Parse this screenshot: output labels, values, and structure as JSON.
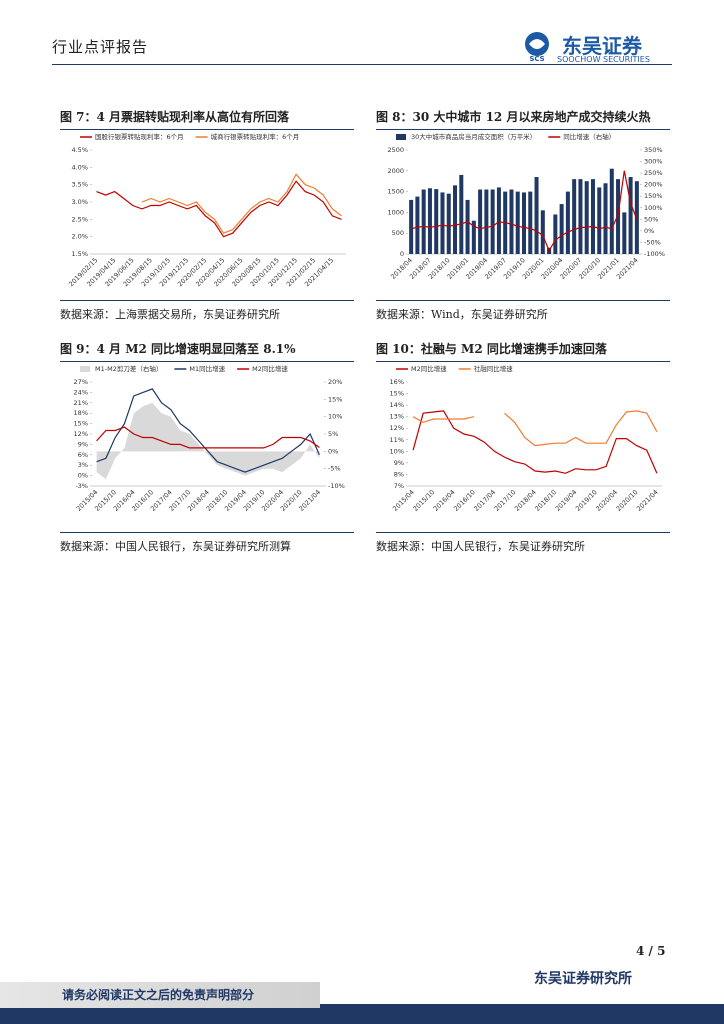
{
  "header": {
    "title": "行业点评报告",
    "logo_cn": "东吴证券",
    "logo_mark": "SCS",
    "logo_en": "SOOCHOW SECURITIES"
  },
  "figures": [
    {
      "title": "图 7：4 月票据转贴现利率从高位有所回落",
      "source": "数据来源：上海票据交易所，东吴证券研究所"
    },
    {
      "title": "图 8：30 大中城市 12 月以来房地产成交持续火热",
      "source": "数据来源：Wind，东吴证券研究所"
    },
    {
      "title": "图 9：4 月 M2 同比增速明显回落至 8.1%",
      "source": "数据来源：中国人民银行，东吴证券研究所测算"
    },
    {
      "title": "图 10：社融与 M2 同比增速携手加速回落",
      "source": "数据来源：中国人民银行，东吴证券研究所"
    }
  ],
  "chart_data": [
    {
      "type": "line",
      "categories": [
        "2019/02/15",
        null,
        "2019/04/15",
        null,
        "2019/06/15",
        null,
        "2019/08/15",
        null,
        "2019/10/15",
        null,
        "2019/12/15",
        null,
        "2020/02/15",
        null,
        "2020/04/15",
        null,
        "2020/06/15",
        null,
        "2020/08/15",
        null,
        "2020/10/15",
        null,
        "2020/12/15",
        null,
        "2021/02/15",
        null,
        "2021/04/15",
        null
      ],
      "ylim": [
        1.5,
        4.5
      ],
      "yticks": [
        {
          "value": 1.5,
          "label": "1.5%"
        },
        {
          "value": 2.0,
          "label": "2.0%"
        },
        {
          "value": 2.5,
          "label": "2.5%"
        },
        {
          "value": 3.0,
          "label": "3.0%"
        },
        {
          "value": 3.5,
          "label": "3.5%"
        },
        {
          "value": 4.0,
          "label": "4.0%"
        },
        {
          "value": 4.5,
          "label": "4.5%"
        }
      ],
      "series": [
        {
          "name": "国股行银票转贴现利率：6个月",
          "type": "line",
          "color": "#c00000",
          "values": [
            3.3,
            3.2,
            3.3,
            3.1,
            2.9,
            2.8,
            2.9,
            2.9,
            3.0,
            2.9,
            2.8,
            2.9,
            2.6,
            2.4,
            2.0,
            2.1,
            2.4,
            2.7,
            2.9,
            3.0,
            2.9,
            3.2,
            3.6,
            3.3,
            3.2,
            3.0,
            2.6,
            2.5
          ]
        },
        {
          "name": "城商行银票转贴现利率：6个月",
          "type": "line",
          "color": "#ed7d31",
          "values": [
            null,
            null,
            null,
            null,
            null,
            3.0,
            3.1,
            3.0,
            3.1,
            3.0,
            2.9,
            3.0,
            2.7,
            2.5,
            2.1,
            2.2,
            2.5,
            2.8,
            3.0,
            3.1,
            3.0,
            3.3,
            3.8,
            3.5,
            3.4,
            3.2,
            2.8,
            2.6
          ]
        }
      ]
    },
    {
      "type": "bar",
      "categories": [
        "2018/04",
        null,
        null,
        "2018/07",
        null,
        null,
        "2018/10",
        null,
        null,
        "2019/01",
        null,
        null,
        "2019/04",
        null,
        null,
        "2019/07",
        null,
        null,
        "2019/10",
        null,
        null,
        "2020/01",
        null,
        null,
        "2020/04",
        null,
        null,
        "2020/07",
        null,
        null,
        "2020/10",
        null,
        null,
        "2021/01",
        null,
        null,
        "2021/04"
      ],
      "ylim": [
        0,
        2500
      ],
      "yticks": [
        0,
        500,
        1000,
        1500,
        2000,
        2500
      ],
      "y2lim": [
        -100,
        350
      ],
      "y2ticks": [
        {
          "value": -100,
          "label": "-100%"
        },
        {
          "value": -50,
          "label": "-50%"
        },
        {
          "value": 0,
          "label": "0%"
        },
        {
          "value": 50,
          "label": "50%"
        },
        {
          "value": 100,
          "label": "100%"
        },
        {
          "value": 150,
          "label": "150%"
        },
        {
          "value": 200,
          "label": "200%"
        },
        {
          "value": 250,
          "label": "250%"
        },
        {
          "value": 300,
          "label": "300%"
        },
        {
          "value": 350,
          "label": "350%"
        }
      ],
      "series": [
        {
          "name": "30大中城市商品房当月成交面积（万平米）",
          "type": "bar",
          "color": "#1f3864",
          "values": [
            1300,
            1380,
            1550,
            1580,
            1560,
            1480,
            1450,
            1650,
            1900,
            1300,
            800,
            1550,
            1550,
            1550,
            1600,
            1500,
            1550,
            1500,
            1480,
            1500,
            1850,
            1050,
            150,
            950,
            1200,
            1500,
            1800,
            1800,
            1750,
            1800,
            1600,
            1700,
            2050,
            1800,
            1000,
            1850,
            1750
          ]
        },
        {
          "name": "同比增速（右轴）",
          "type": "line",
          "axis": "y2",
          "color": "#c00000",
          "values": [
            10,
            15,
            20,
            15,
            20,
            25,
            20,
            25,
            30,
            40,
            20,
            10,
            15,
            20,
            40,
            35,
            30,
            20,
            15,
            10,
            0,
            -20,
            -85,
            -40,
            -20,
            -5,
            5,
            15,
            15,
            20,
            10,
            15,
            10,
            70,
            260,
            120,
            50
          ]
        }
      ]
    },
    {
      "type": "line",
      "categories": [
        "2015/04",
        null,
        "2015/10",
        null,
        "2016/04",
        null,
        "2016/10",
        null,
        "2017/04",
        null,
        "2017/10",
        null,
        "2018/04",
        null,
        "2018/10",
        null,
        "2019/04",
        null,
        "2019/10",
        null,
        "2020/04",
        null,
        "2020/10",
        null,
        "2021/04"
      ],
      "ylim": [
        -3,
        27
      ],
      "yticks": [
        {
          "value": -3,
          "label": "-3%"
        },
        {
          "value": 0,
          "label": "0%"
        },
        {
          "value": 3,
          "label": "3%"
        },
        {
          "value": 6,
          "label": "6%"
        },
        {
          "value": 9,
          "label": "9%"
        },
        {
          "value": 12,
          "label": "12%"
        },
        {
          "value": 15,
          "label": "15%"
        },
        {
          "value": 18,
          "label": "18%"
        },
        {
          "value": 21,
          "label": "21%"
        },
        {
          "value": 24,
          "label": "24%"
        },
        {
          "value": 27,
          "label": "27%"
        }
      ],
      "y2lim": [
        -10,
        20
      ],
      "y2ticks": [
        {
          "value": -10,
          "label": "-10%"
        },
        {
          "value": -5,
          "label": "-5%"
        },
        {
          "value": 0,
          "label": "0%"
        },
        {
          "value": 5,
          "label": "5%"
        },
        {
          "value": 10,
          "label": "10%"
        },
        {
          "value": 15,
          "label": "15%"
        },
        {
          "value": 20,
          "label": "20%"
        }
      ],
      "series": [
        {
          "name": "M1-M2剪刀差（右轴）",
          "type": "area",
          "axis": "y2",
          "color": "#d9d9d9",
          "values": [
            -6,
            -8,
            -2,
            1,
            11,
            13,
            14,
            11,
            10,
            6,
            5,
            2,
            -1,
            -4,
            -5,
            -6,
            -7,
            -6,
            -5,
            -5,
            -6,
            -4,
            -2,
            2,
            -2
          ]
        },
        {
          "name": "M1同比增速",
          "type": "line",
          "color": "#1f3864",
          "values": [
            4,
            5,
            11,
            15,
            23,
            24,
            25,
            21,
            19,
            15,
            13,
            10,
            7,
            4,
            3,
            2,
            1,
            2,
            3,
            4,
            5,
            7,
            9,
            12,
            6
          ]
        },
        {
          "name": "M2同比增速",
          "type": "line",
          "color": "#c00000",
          "values": [
            10,
            13,
            13,
            14,
            12,
            11,
            11,
            10,
            9,
            9,
            8,
            8,
            8,
            8,
            8,
            8,
            8,
            8,
            8,
            9,
            11,
            11,
            11,
            10,
            8.1
          ]
        }
      ]
    },
    {
      "type": "line",
      "categories": [
        "2015/04",
        null,
        "2015/10",
        null,
        "2016/04",
        null,
        "2016/10",
        null,
        "2017/04",
        null,
        "2017/10",
        null,
        "2018/04",
        null,
        "2018/10",
        null,
        "2019/04",
        null,
        "2019/10",
        null,
        "2020/04",
        null,
        "2020/10",
        null,
        "2021/04"
      ],
      "ylim": [
        7,
        16
      ],
      "yticks": [
        {
          "value": 7,
          "label": "7%"
        },
        {
          "value": 8,
          "label": "8%"
        },
        {
          "value": 9,
          "label": "9%"
        },
        {
          "value": 10,
          "label": "10%"
        },
        {
          "value": 11,
          "label": "11%"
        },
        {
          "value": 12,
          "label": "12%"
        },
        {
          "value": 13,
          "label": "13%"
        },
        {
          "value": 14,
          "label": "14%"
        },
        {
          "value": 15,
          "label": "15%"
        },
        {
          "value": 16,
          "label": "16%"
        }
      ],
      "series": [
        {
          "name": "M2同比增速",
          "type": "line",
          "color": "#c00000",
          "values": [
            10.1,
            13.3,
            13.4,
            13.5,
            12,
            11.5,
            11.3,
            10.8,
            10,
            9.5,
            9.1,
            8.9,
            8.3,
            8.2,
            8.3,
            8.1,
            8.5,
            8.4,
            8.4,
            8.7,
            11.1,
            11.1,
            10.5,
            10.1,
            8.1
          ]
        },
        {
          "name": "社融同比增速",
          "type": "line",
          "color": "#ed7d31",
          "values": [
            13,
            12.5,
            12.8,
            12.8,
            12.8,
            12.8,
            13,
            null,
            null,
            13.3,
            12.5,
            11.2,
            10.5,
            10.6,
            10.7,
            10.7,
            11.2,
            10.7,
            10.7,
            10.7,
            12.3,
            13.4,
            13.5,
            13.3,
            11.7
          ]
        }
      ]
    }
  ],
  "footer": {
    "page": "4 / 5",
    "org": "东吴证券研究所",
    "disclaimer": "请务必阅读正文之后的免责声明部分"
  }
}
